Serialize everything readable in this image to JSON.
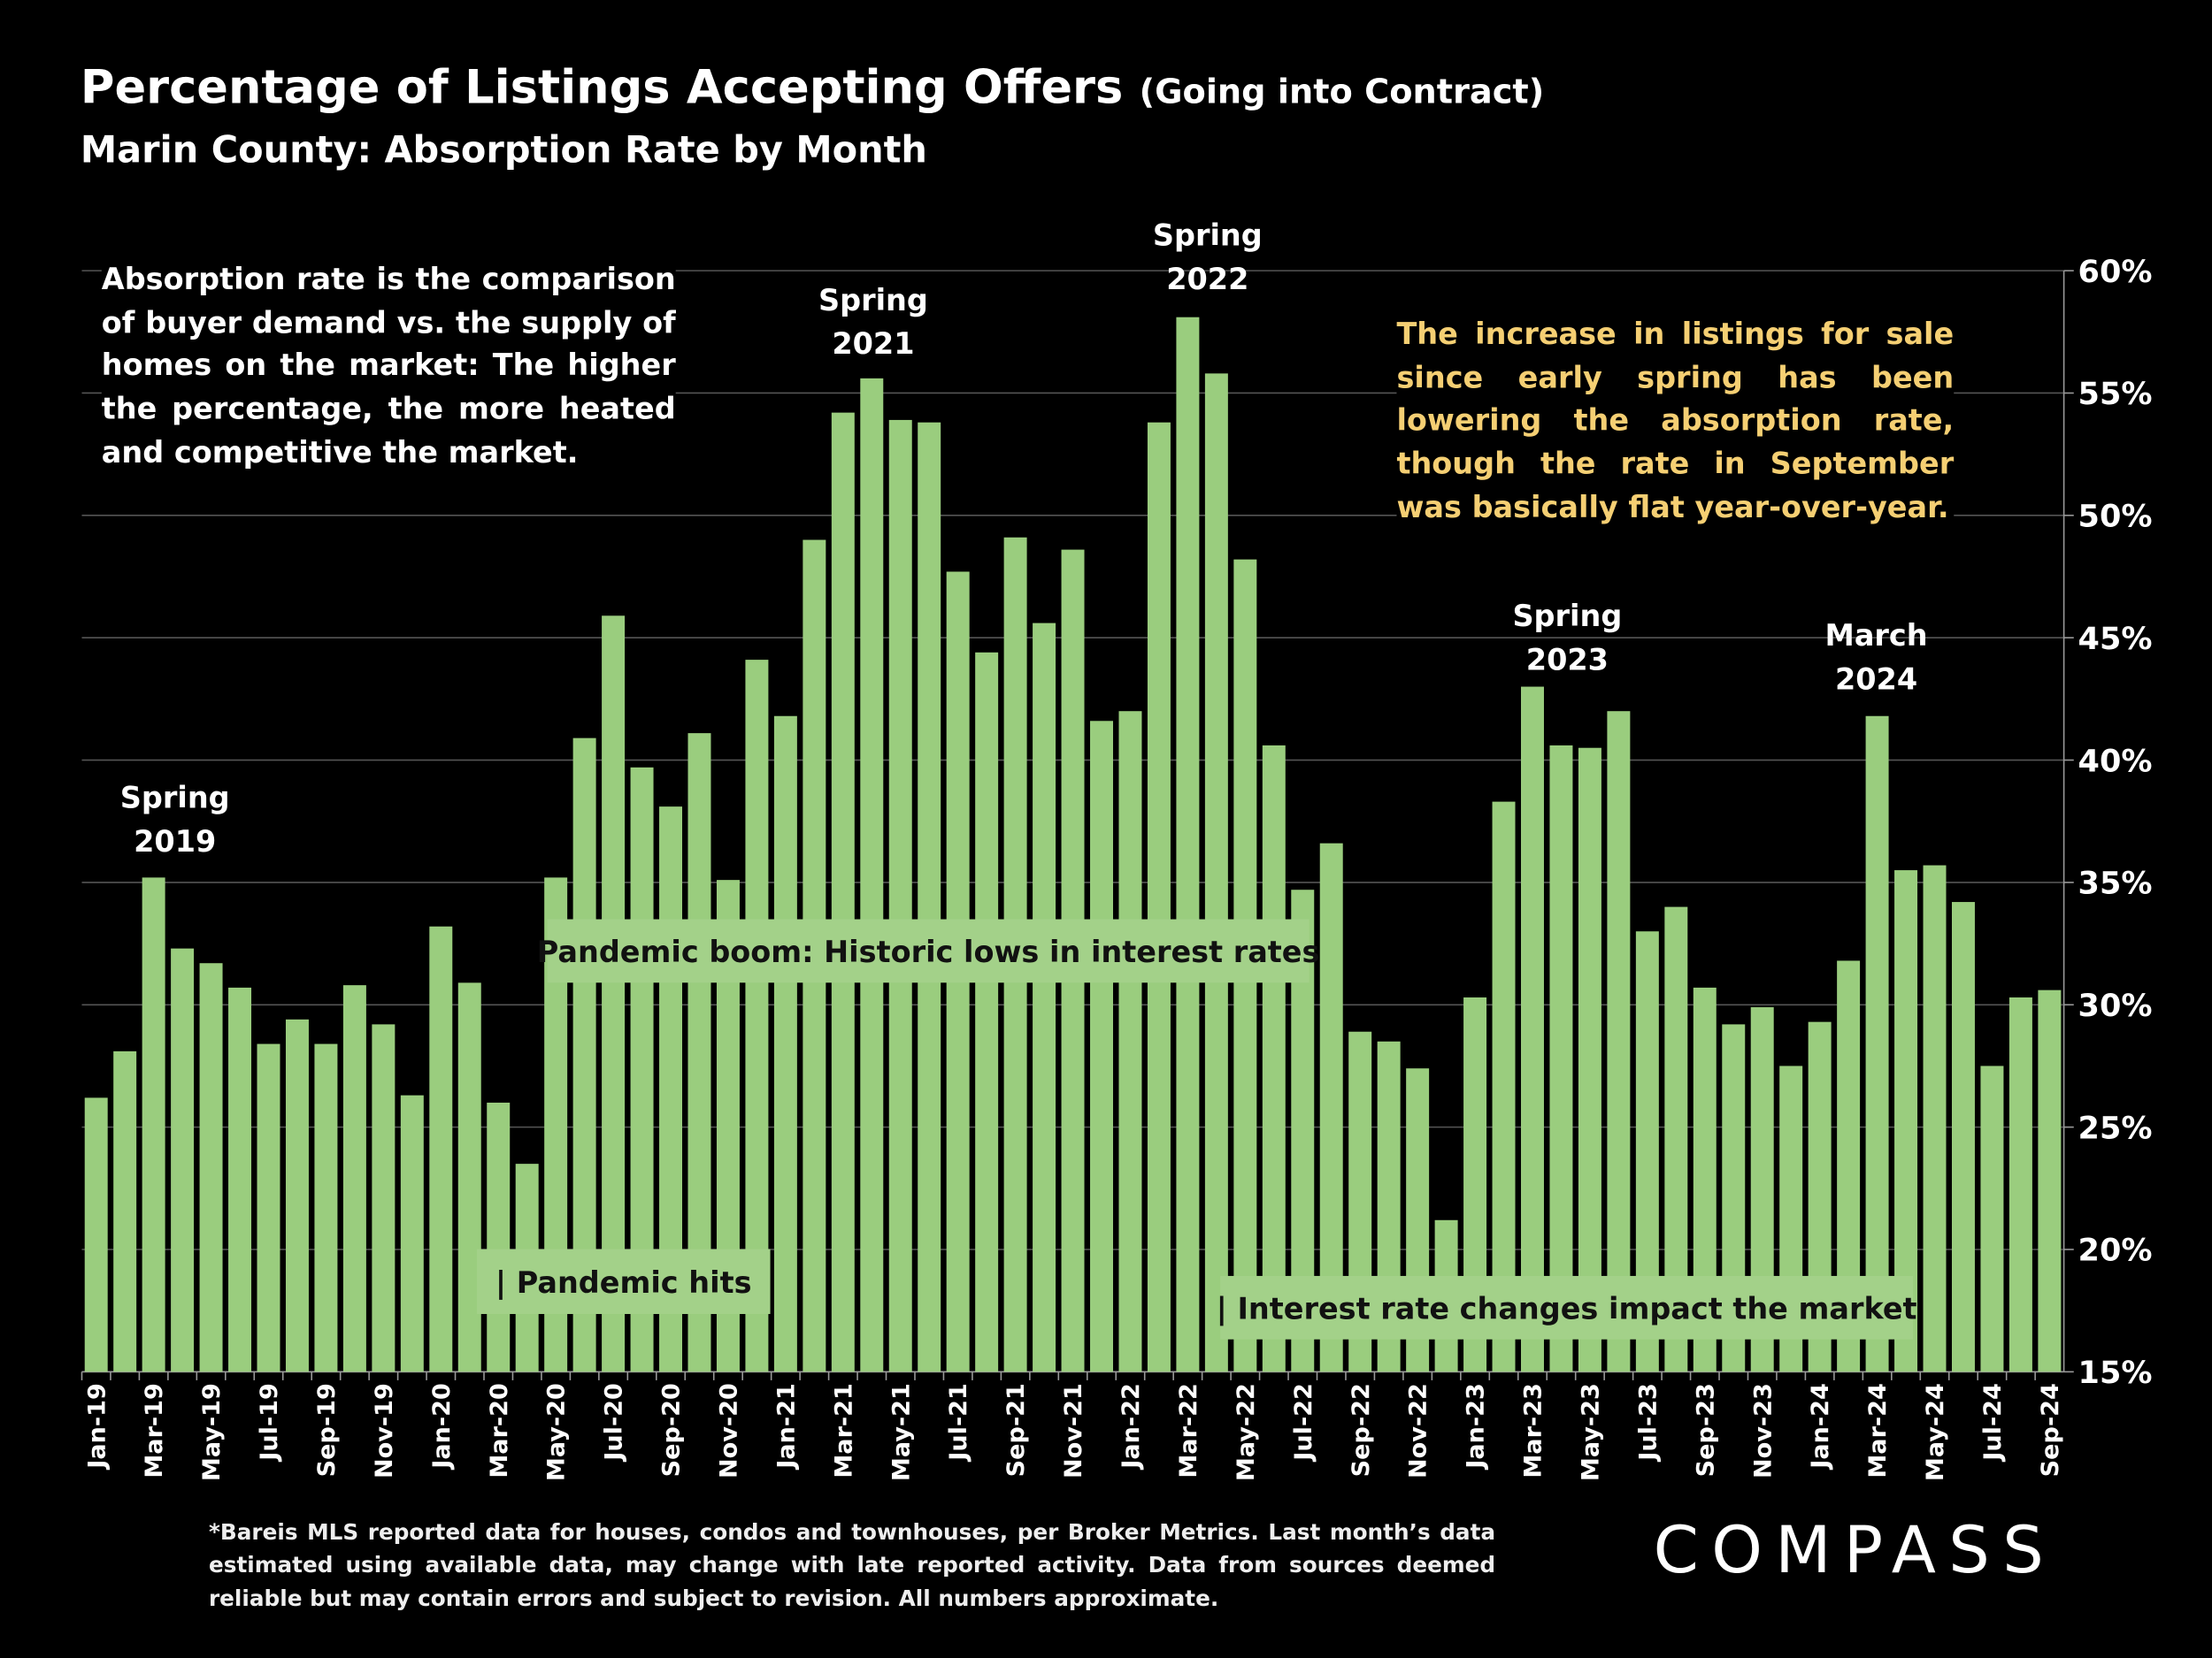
{
  "chart_data": {
    "type": "bar",
    "title": "Percentage of Listings Accepting Offers",
    "title_note": "(Going into Contract)",
    "subtitle": "Marin County:  Absorption Rate by Month",
    "categories": [
      "Jan-19",
      null,
      "Mar-19",
      null,
      "May-19",
      null,
      "Jul-19",
      null,
      "Sep-19",
      null,
      "Nov-19",
      null,
      "Jan-20",
      null,
      "Mar-20",
      null,
      "May-20",
      null,
      "Jul-20",
      null,
      "Sep-20",
      null,
      "Nov-20",
      null,
      "Jan-21",
      null,
      "Mar-21",
      null,
      "May-21",
      null,
      "Jul-21",
      null,
      "Sep-21",
      null,
      "Nov-21",
      null,
      "Jan-22",
      null,
      "Mar-22",
      null,
      "May-22",
      null,
      "Jul-22",
      null,
      "Sep-22",
      null,
      "Nov-22",
      null,
      "Jan-23",
      null,
      "Mar-23",
      null,
      "May-23",
      null,
      "Jul-23",
      null,
      "Sep-23",
      null,
      "Nov-23",
      null,
      "Jan-24",
      null,
      "Mar-24",
      null,
      "May-24",
      null,
      "Jul-24",
      null,
      "Sep-24"
    ],
    "values": [
      26.2,
      28.1,
      35.2,
      32.3,
      31.7,
      30.7,
      28.4,
      29.4,
      28.4,
      30.8,
      29.2,
      26.3,
      33.2,
      30.9,
      26.0,
      23.5,
      35.2,
      40.9,
      45.9,
      39.7,
      38.1,
      41.1,
      35.1,
      44.1,
      41.8,
      49.0,
      54.2,
      55.6,
      53.9,
      53.8,
      47.7,
      44.4,
      49.1,
      45.6,
      48.6,
      41.6,
      42.0,
      53.8,
      58.1,
      55.8,
      48.2,
      40.6,
      34.7,
      36.6,
      28.9,
      28.5,
      27.4,
      21.2,
      30.3,
      38.3,
      43.0,
      40.6,
      40.5,
      42.0,
      33.0,
      34.0,
      30.7,
      29.2,
      29.9,
      27.5,
      29.3,
      31.8,
      41.8,
      35.5,
      35.7,
      34.2,
      27.5,
      30.3,
      30.6
    ],
    "color": "#9acd7e",
    "ylim": [
      15,
      60
    ],
    "yticks": [
      {
        "value": 15,
        "label": "15%"
      },
      {
        "value": 20,
        "label": "20%"
      },
      {
        "value": 25,
        "label": "25%"
      },
      {
        "value": 30,
        "label": "30%"
      },
      {
        "value": 35,
        "label": "35%"
      },
      {
        "value": 40,
        "label": "40%"
      },
      {
        "value": 45,
        "label": "45%"
      },
      {
        "value": 50,
        "label": "50%"
      },
      {
        "value": 55,
        "label": "55%"
      },
      {
        "value": 60,
        "label": "60%"
      }
    ],
    "grid": true,
    "annotations": [
      {
        "lines": [
          "Spring",
          "2019"
        ]
      },
      {
        "lines": [
          "Spring",
          "2021"
        ]
      },
      {
        "lines": [
          "Spring",
          "2022"
        ]
      },
      {
        "lines": [
          "Spring",
          "2023"
        ]
      },
      {
        "lines": [
          "March",
          "2024"
        ]
      }
    ],
    "boxes": [
      "Pandemic boom: Historic lows in interest rates",
      "| Pandemic hits",
      "| Interest rate changes impact the market"
    ],
    "description": "Absorption rate is the comparison of buyer demand vs. the supply of homes on the market: The higher the percentage, the more heated and competitive the market.",
    "note": "The increase in listings for sale since early spring has been lowering the absorption rate, though the rate in September was basically flat year-over-year.",
    "footnote": "*Bareis MLS reported data for houses, condos and townhouses, per Broker Metrics. Last month’s data estimated using available data, may change with late reported activity. Data from sources deemed reliable but may contain errors and subject to revision. All numbers approximate.",
    "logo": "COMPASS"
  }
}
